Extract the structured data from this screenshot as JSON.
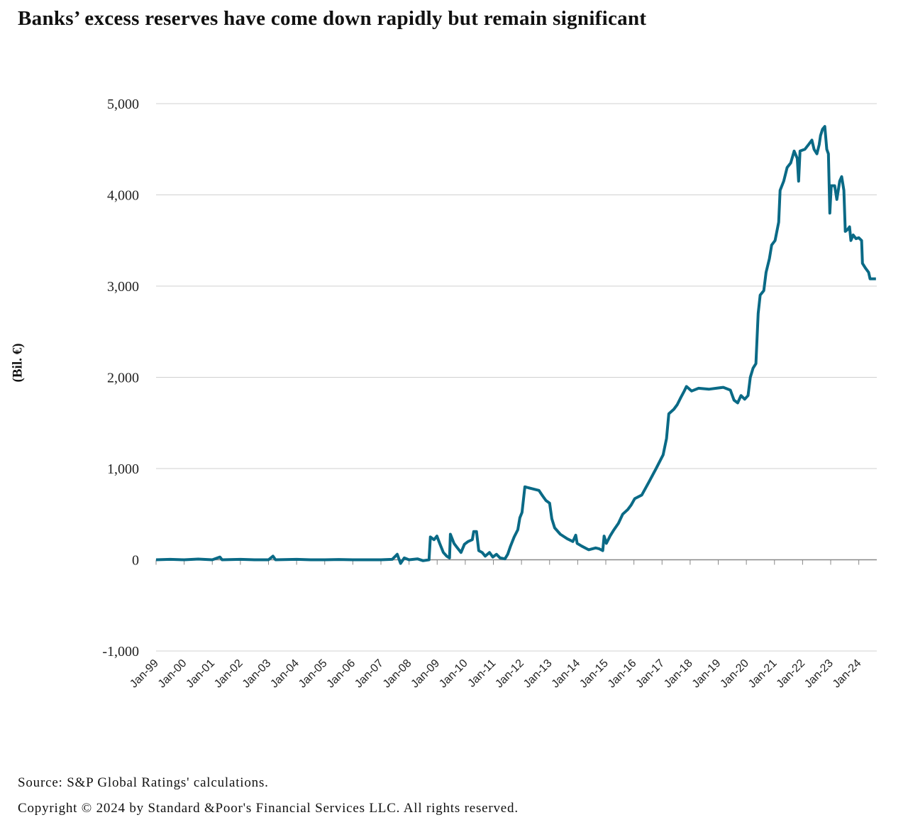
{
  "title": "Banks’ excess reserves have come down rapidly but remain significant",
  "footer": {
    "source": "Source: S&P Global Ratings' calculations.",
    "copyright": "Copyright © 2024 by Standard &Poor's Financial Services LLC. All rights reserved."
  },
  "colors": {
    "line": "#0a6a86",
    "grid": "#d0d0d0",
    "axis": "#888888"
  },
  "chart_data": {
    "type": "line",
    "title": "Banks’ excess reserves have come down rapidly but remain significant",
    "xlabel": "",
    "ylabel": "(Bil. €)",
    "ylim": [
      -1000,
      5000
    ],
    "xlim": [
      1999,
      2024.64
    ],
    "yticks": [
      -1000,
      0,
      1000,
      2000,
      3000,
      4000,
      5000
    ],
    "ytick_labels": [
      "-1,000",
      "0",
      "1,000",
      "2,000",
      "3,000",
      "4,000",
      "5,000"
    ],
    "xtick_labels": [
      "Jan-99",
      "Jan-00",
      "Jan-01",
      "Jan-02",
      "Jan-03",
      "Jan-04",
      "Jan-05",
      "Jan-06",
      "Jan-07",
      "Jan-08",
      "Jan-09",
      "Jan-10",
      "Jan-11",
      "Jan-12",
      "Jan-13",
      "Jan-14",
      "Jan-15",
      "Jan-16",
      "Jan-17",
      "Jan-18",
      "Jan-19",
      "Jan-20",
      "Jan-21",
      "Jan-22",
      "Jan-23",
      "Jan-24"
    ],
    "grid": true,
    "series": [
      {
        "name": "Excess reserves",
        "x": [
          1999,
          1999.5,
          2000,
          2000.5,
          2001,
          2001.27,
          2001.35,
          2002,
          2002.5,
          2003,
          2003.16,
          2003.25,
          2004,
          2004.5,
          2005,
          2005.5,
          2006,
          2006.5,
          2007,
          2007.4,
          2007.58,
          2007.7,
          2007.83,
          2008.0,
          2008.3,
          2008.5,
          2008.71,
          2008.76,
          2008.89,
          2008.99,
          2009.09,
          2009.22,
          2009.34,
          2009.44,
          2009.47,
          2009.6,
          2009.72,
          2009.85,
          2009.97,
          2010.1,
          2010.25,
          2010.3,
          2010.4,
          2010.48,
          2010.6,
          2010.71,
          2010.86,
          2010.98,
          2011.11,
          2011.24,
          2011.41,
          2011.51,
          2011.61,
          2011.74,
          2011.87,
          2011.94,
          2012.02,
          2012.12,
          2012.24,
          2012.37,
          2012.62,
          2012.75,
          2012.87,
          2013.0,
          2013.08,
          2013.18,
          2013.38,
          2013.63,
          2013.83,
          2013.93,
          2013.98,
          2014.14,
          2014.39,
          2014.64,
          2014.77,
          2014.89,
          2014.94,
          2015.02,
          2015.15,
          2015.27,
          2015.45,
          2015.6,
          2015.78,
          2015.9,
          2016.03,
          2016.28,
          2016.53,
          2016.79,
          2017.04,
          2017.16,
          2017.24,
          2017.42,
          2017.54,
          2017.67,
          2017.79,
          2017.87,
          2018.05,
          2018.3,
          2018.68,
          2018.93,
          2019.18,
          2019.43,
          2019.56,
          2019.69,
          2019.81,
          2019.94,
          2020.06,
          2020.14,
          2020.24,
          2020.34,
          2020.42,
          2020.49,
          2020.62,
          2020.7,
          2020.82,
          2020.9,
          2021.02,
          2021.15,
          2021.2,
          2021.33,
          2021.45,
          2021.58,
          2021.7,
          2021.81,
          2021.86,
          2021.91,
          2022.08,
          2022.21,
          2022.33,
          2022.41,
          2022.51,
          2022.59,
          2022.64,
          2022.71,
          2022.79,
          2022.86,
          2022.92,
          2022.97,
          2023.02,
          2023.14,
          2023.22,
          2023.32,
          2023.39,
          2023.47,
          2023.52,
          2023.6,
          2023.67,
          2023.72,
          2023.8,
          2023.9,
          2024.0,
          2024.1,
          2024.13,
          2024.23,
          2024.35,
          2024.4,
          2024.61
        ],
        "y": [
          0,
          5,
          0,
          8,
          0,
          30,
          0,
          5,
          0,
          0,
          40,
          0,
          5,
          0,
          0,
          3,
          0,
          0,
          0,
          5,
          60,
          -40,
          20,
          0,
          10,
          -10,
          0,
          250,
          220,
          260,
          180,
          80,
          40,
          20,
          280,
          180,
          130,
          80,
          170,
          200,
          220,
          310,
          310,
          100,
          80,
          40,
          80,
          30,
          60,
          20,
          10,
          60,
          150,
          250,
          330,
          460,
          520,
          800,
          790,
          780,
          760,
          700,
          650,
          620,
          450,
          350,
          280,
          230,
          200,
          270,
          180,
          150,
          110,
          130,
          120,
          100,
          260,
          180,
          260,
          320,
          400,
          500,
          550,
          600,
          670,
          710,
          850,
          1000,
          1150,
          1330,
          1600,
          1650,
          1700,
          1780,
          1850,
          1900,
          1850,
          1880,
          1870,
          1880,
          1890,
          1860,
          1750,
          1720,
          1800,
          1760,
          1800,
          2000,
          2100,
          2150,
          2700,
          2900,
          2950,
          3150,
          3300,
          3450,
          3500,
          3700,
          4050,
          4150,
          4300,
          4350,
          4480,
          4400,
          4150,
          4480,
          4500,
          4550,
          4600,
          4500,
          4450,
          4550,
          4650,
          4720,
          4750,
          4500,
          4450,
          3800,
          4100,
          4100,
          3950,
          4150,
          4200,
          4050,
          3600,
          3620,
          3650,
          3500,
          3560,
          3520,
          3530,
          3500,
          3250,
          3200,
          3150,
          3080,
          3080
        ]
      }
    ]
  }
}
